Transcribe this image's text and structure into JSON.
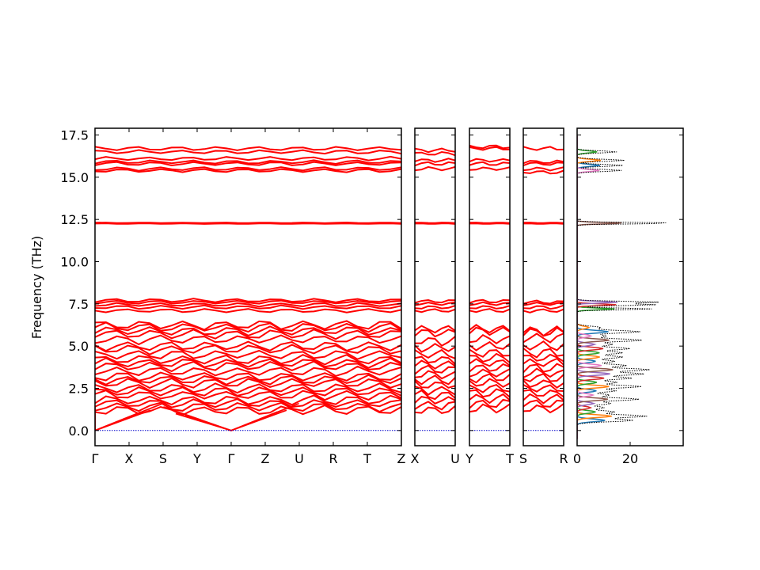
{
  "chart_data": {
    "type": "line",
    "ylabel": "Frequency (THz)",
    "ylim": [
      -0.9,
      17.9
    ],
    "yticks": [
      "0.0",
      "2.5",
      "5.0",
      "7.5",
      "10.0",
      "12.5",
      "15.0",
      "17.5"
    ],
    "ytick_values": [
      0,
      2.5,
      5,
      7.5,
      10,
      12.5,
      15,
      17.5
    ],
    "band_color": "#ff0000",
    "zero_line_color": "#0000cc",
    "panels": [
      {
        "path": [
          "Γ",
          "X",
          "S",
          "Y",
          "Γ",
          "Z",
          "U",
          "R",
          "T",
          "Z"
        ],
        "high_band_levels": [
          15.4,
          15.5,
          15.8,
          15.9,
          16.1,
          16.5,
          16.7
        ],
        "mid_band_levels": [
          12.25,
          12.3
        ],
        "upper_optic_levels": [
          7.1,
          7.3,
          7.45,
          7.6,
          7.7
        ],
        "lower_optic_levels": [
          5.7,
          5.9,
          6.1,
          6.25,
          5.4,
          5.0,
          4.8,
          4.5,
          4.2,
          4.0,
          3.8,
          3.5,
          3.2,
          3.0,
          2.8,
          2.5,
          2.3,
          2.1,
          1.8,
          1.6,
          1.4,
          1.2
        ]
      },
      {
        "path": [
          "X",
          "U"
        ],
        "high_band_levels": [
          15.5,
          15.8,
          16.0,
          16.4,
          16.6
        ],
        "mid_band_levels": [
          12.25,
          12.3
        ],
        "upper_optic_levels": [
          7.1,
          7.3,
          7.5,
          7.65
        ],
        "lower_optic_levels": [
          5.8,
          6.0,
          5.3,
          4.9,
          4.5,
          4.2,
          3.9,
          3.6,
          3.3,
          3.0,
          2.7,
          2.4,
          2.1,
          1.8,
          1.5,
          1.2
        ]
      },
      {
        "path": [
          "Y",
          "T"
        ],
        "high_band_levels": [
          15.5,
          15.8,
          16.0,
          16.7,
          16.8
        ],
        "mid_band_levels": [
          12.25,
          12.3
        ],
        "upper_optic_levels": [
          7.1,
          7.3,
          7.5,
          7.65
        ],
        "lower_optic_levels": [
          5.9,
          6.0,
          5.4,
          5.0,
          4.6,
          4.3,
          4.0,
          3.7,
          3.4,
          3.1,
          2.8,
          2.5,
          2.2,
          1.9,
          1.6,
          1.3
        ]
      },
      {
        "path": [
          "S",
          "R"
        ],
        "high_band_levels": [
          15.3,
          15.5,
          15.8,
          15.9,
          16.7
        ],
        "mid_band_levels": [
          12.25,
          12.3
        ],
        "upper_optic_levels": [
          7.1,
          7.3,
          7.5,
          7.6
        ],
        "lower_optic_levels": [
          5.8,
          5.9,
          5.5,
          5.0,
          4.6,
          4.3,
          4.0,
          3.7,
          3.4,
          3.1,
          2.8,
          2.5,
          2.2,
          1.9,
          1.6,
          1.3
        ]
      }
    ],
    "dos": {
      "xticks": [
        "0",
        "20"
      ],
      "xtick_values": [
        0,
        20
      ],
      "xlim": [
        0,
        40
      ],
      "total_color": "#000000",
      "total_style": "dotted",
      "series_colors": [
        "#1f77b4",
        "#ff7f0e",
        "#2ca02c",
        "#d62728",
        "#9467bd",
        "#8c564b",
        "#e377c2"
      ]
    }
  }
}
